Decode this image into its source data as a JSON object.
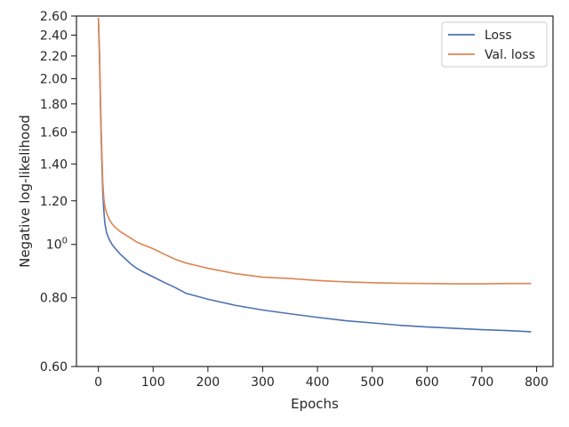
{
  "chart_data": {
    "type": "line",
    "title": "",
    "xlabel": "Epochs",
    "ylabel": "Negative log-likelihood",
    "xlim": [
      -40,
      830
    ],
    "ylim": [
      0.6,
      2.6
    ],
    "yscale": "log",
    "grid": false,
    "legend_position": "top-right",
    "x_ticks": [
      0,
      100,
      200,
      300,
      400,
      500,
      600,
      700,
      800
    ],
    "x_tick_labels": [
      "0",
      "100",
      "200",
      "300",
      "400",
      "500",
      "600",
      "700",
      "800"
    ],
    "y_ticks": [
      0.6,
      0.8,
      1.0,
      1.2,
      1.4,
      1.6,
      1.8,
      2.0,
      2.2,
      2.4,
      2.6
    ],
    "y_tick_labels": [
      "0.60",
      "0.80",
      "10^0",
      "1.20",
      "1.40",
      "1.60",
      "1.80",
      "2.00",
      "2.20",
      "2.40",
      "2.60"
    ],
    "series": [
      {
        "name": "Loss",
        "color": "#4c72b0",
        "x": [
          0,
          2,
          4,
          6,
          8,
          10,
          12,
          15,
          20,
          25,
          30,
          40,
          50,
          60,
          70,
          80,
          100,
          120,
          140,
          160,
          180,
          200,
          250,
          300,
          350,
          400,
          450,
          500,
          550,
          600,
          650,
          700,
          750,
          790
        ],
        "y": [
          2.58,
          2.2,
          1.75,
          1.45,
          1.25,
          1.15,
          1.09,
          1.05,
          1.02,
          1.0,
          0.985,
          0.96,
          0.94,
          0.92,
          0.905,
          0.893,
          0.873,
          0.853,
          0.835,
          0.815,
          0.805,
          0.795,
          0.775,
          0.76,
          0.748,
          0.737,
          0.727,
          0.72,
          0.713,
          0.708,
          0.704,
          0.7,
          0.697,
          0.694
        ]
      },
      {
        "name": "Val. loss",
        "color": "#dd8452",
        "x": [
          0,
          2,
          4,
          6,
          8,
          10,
          12,
          15,
          20,
          25,
          30,
          40,
          50,
          60,
          70,
          80,
          100,
          120,
          140,
          160,
          180,
          200,
          250,
          300,
          350,
          400,
          450,
          500,
          550,
          600,
          650,
          700,
          750,
          790
        ],
        "y": [
          2.58,
          2.25,
          1.8,
          1.5,
          1.3,
          1.21,
          1.17,
          1.14,
          1.11,
          1.09,
          1.075,
          1.055,
          1.04,
          1.025,
          1.01,
          1.0,
          0.982,
          0.96,
          0.94,
          0.925,
          0.915,
          0.905,
          0.885,
          0.872,
          0.867,
          0.86,
          0.855,
          0.852,
          0.85,
          0.849,
          0.848,
          0.848,
          0.849,
          0.849
        ]
      }
    ]
  }
}
